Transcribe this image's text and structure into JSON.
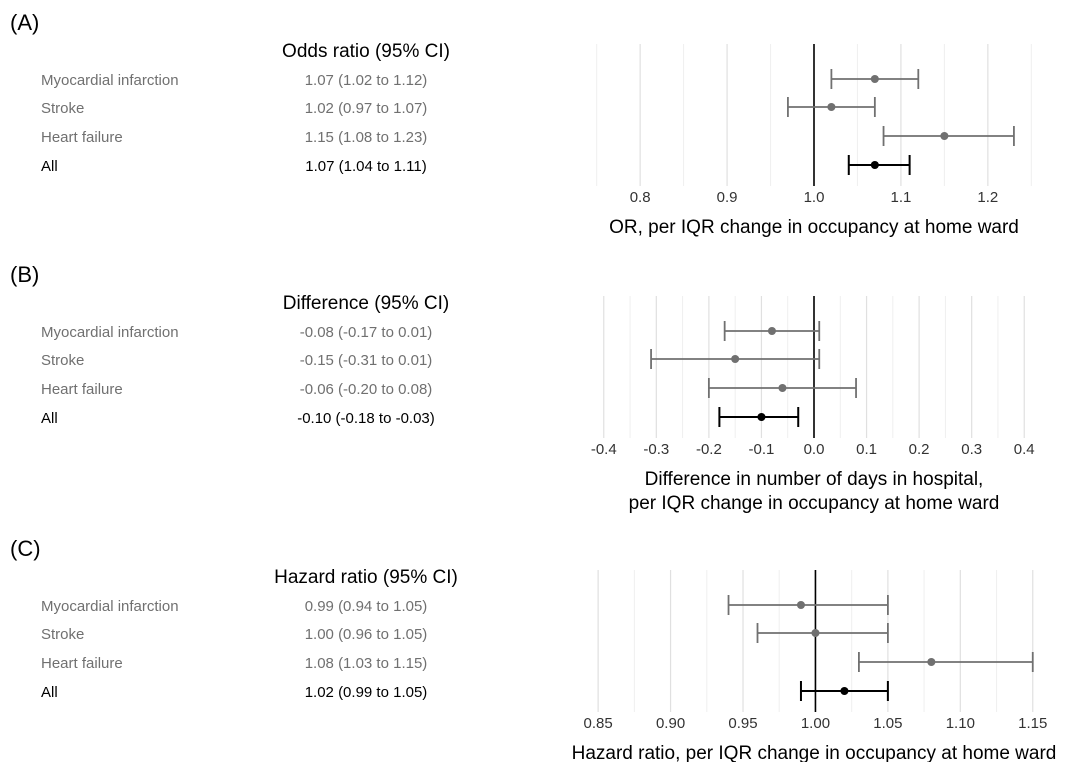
{
  "colors": {
    "subgroup": "#707070",
    "overall": "#000000"
  },
  "chart_data": [
    {
      "type": "forest",
      "panel_label": "(A)",
      "estimate_header": "Odds ratio (95% CI)",
      "xlabel": [
        "OR, per IQR change in occupancy at home ward"
      ],
      "xlim": [
        0.74,
        1.26
      ],
      "reference": 1.0,
      "major_ticks": [
        0.8,
        0.9,
        1.0,
        1.1,
        1.2
      ],
      "minor_ticks": [
        0.75,
        0.85,
        0.95,
        1.05,
        1.15,
        1.25
      ],
      "tick_labels": [
        "0.8",
        "0.9",
        "1.0",
        "1.1",
        "1.2"
      ],
      "rows": [
        {
          "label": "Myocardial infarction",
          "estimate": 1.07,
          "lower": 1.02,
          "upper": 1.12,
          "text": "1.07 (1.02 to 1.12)",
          "overall": false
        },
        {
          "label": "Stroke",
          "estimate": 1.02,
          "lower": 0.97,
          "upper": 1.07,
          "text": "1.02 (0.97 to 1.07)",
          "overall": false
        },
        {
          "label": "Heart failure",
          "estimate": 1.15,
          "lower": 1.08,
          "upper": 1.23,
          "text": "1.15 (1.08 to 1.23)",
          "overall": false
        },
        {
          "label": "All",
          "estimate": 1.07,
          "lower": 1.04,
          "upper": 1.11,
          "text": "1.07 (1.04 to 1.11)",
          "overall": true
        }
      ]
    },
    {
      "type": "forest",
      "panel_label": "(B)",
      "estimate_header": "Difference (95% CI)",
      "xlabel": [
        "Difference in number of days in hospital,",
        "per IQR change in occupancy at home ward"
      ],
      "xlim": [
        -0.43,
        0.43
      ],
      "reference": 0,
      "major_ticks": [
        -0.4,
        -0.3,
        -0.2,
        -0.1,
        0.0,
        0.1,
        0.2,
        0.3,
        0.4
      ],
      "minor_ticks": [
        -0.35,
        -0.25,
        -0.15,
        -0.05,
        0.05,
        0.15,
        0.25,
        0.35
      ],
      "tick_labels": [
        "-0.4",
        "-0.3",
        "-0.2",
        "-0.1",
        "0.0",
        "0.1",
        "0.2",
        "0.3",
        "0.4"
      ],
      "rows": [
        {
          "label": "Myocardial infarction",
          "estimate": -0.08,
          "lower": -0.17,
          "upper": 0.01,
          "text": "-0.08 (-0.17 to 0.01)",
          "overall": false
        },
        {
          "label": "Stroke",
          "estimate": -0.15,
          "lower": -0.31,
          "upper": 0.01,
          "text": "-0.15 (-0.31 to 0.01)",
          "overall": false
        },
        {
          "label": "Heart failure",
          "estimate": -0.06,
          "lower": -0.2,
          "upper": 0.08,
          "text": "-0.06 (-0.20 to 0.08)",
          "overall": false
        },
        {
          "label": "All",
          "estimate": -0.1,
          "lower": -0.18,
          "upper": -0.03,
          "text": "-0.10 (-0.18 to -0.03)",
          "overall": true
        }
      ]
    },
    {
      "type": "forest",
      "panel_label": "(C)",
      "estimate_header": "Hazard ratio (95% CI)",
      "xlabel": [
        "Hazard ratio, per IQR change in occupancy at home ward"
      ],
      "xlim": [
        0.843,
        1.155
      ],
      "reference": 1.0,
      "major_ticks": [
        0.85,
        0.9,
        0.95,
        1.0,
        1.05,
        1.1,
        1.15
      ],
      "minor_ticks": [
        0.875,
        0.925,
        0.975,
        1.025,
        1.075,
        1.125
      ],
      "tick_labels": [
        "0.85",
        "0.90",
        "0.95",
        "1.00",
        "1.05",
        "1.10",
        "1.15"
      ],
      "rows": [
        {
          "label": "Myocardial infarction",
          "estimate": 0.99,
          "lower": 0.94,
          "upper": 1.05,
          "text": "0.99 (0.94 to 1.05)",
          "overall": false
        },
        {
          "label": "Stroke",
          "estimate": 1.0,
          "lower": 0.96,
          "upper": 1.05,
          "text": "1.00 (0.96 to 1.05)",
          "overall": false
        },
        {
          "label": "Heart failure",
          "estimate": 1.08,
          "lower": 1.03,
          "upper": 1.15,
          "text": "1.08 (1.03 to 1.15)",
          "overall": false
        },
        {
          "label": "All",
          "estimate": 1.02,
          "lower": 0.99,
          "upper": 1.05,
          "text": "1.02 (0.99 to 1.05)",
          "overall": true
        }
      ]
    }
  ]
}
